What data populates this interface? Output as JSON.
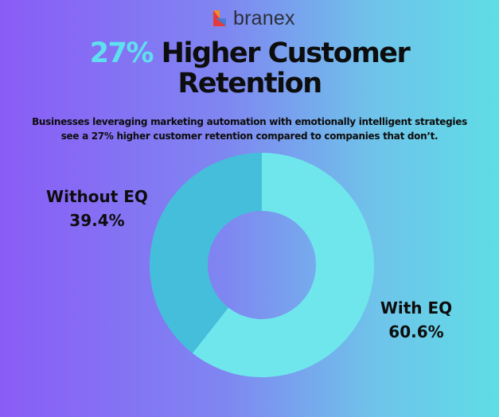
{
  "brand": {
    "name": "branex",
    "colors": {
      "red": "#e63a3a",
      "orange": "#f28c28",
      "blue": "#3a7bd5"
    }
  },
  "headline": {
    "accent": "27%",
    "rest_line1": " Higher Customer",
    "line2": "Retention",
    "accent_color": "#5fe0ee"
  },
  "subtitle": {
    "line1": "Businesses leveraging marketing automation with emotionally intelligent strategies",
    "line2": "see a 27% higher customer retention compared to companies that don’t."
  },
  "chart_data": {
    "type": "pie",
    "donut": true,
    "start_angle_deg": 0,
    "clockwise": true,
    "slices": [
      {
        "label": "With EQ",
        "value": 60.6,
        "value_label": "60.6%",
        "color": "#6fe6ec"
      },
      {
        "label": "Without EQ",
        "value": 39.4,
        "value_label": "39.4%",
        "color": "#45bedb"
      }
    ],
    "legend": "none"
  }
}
